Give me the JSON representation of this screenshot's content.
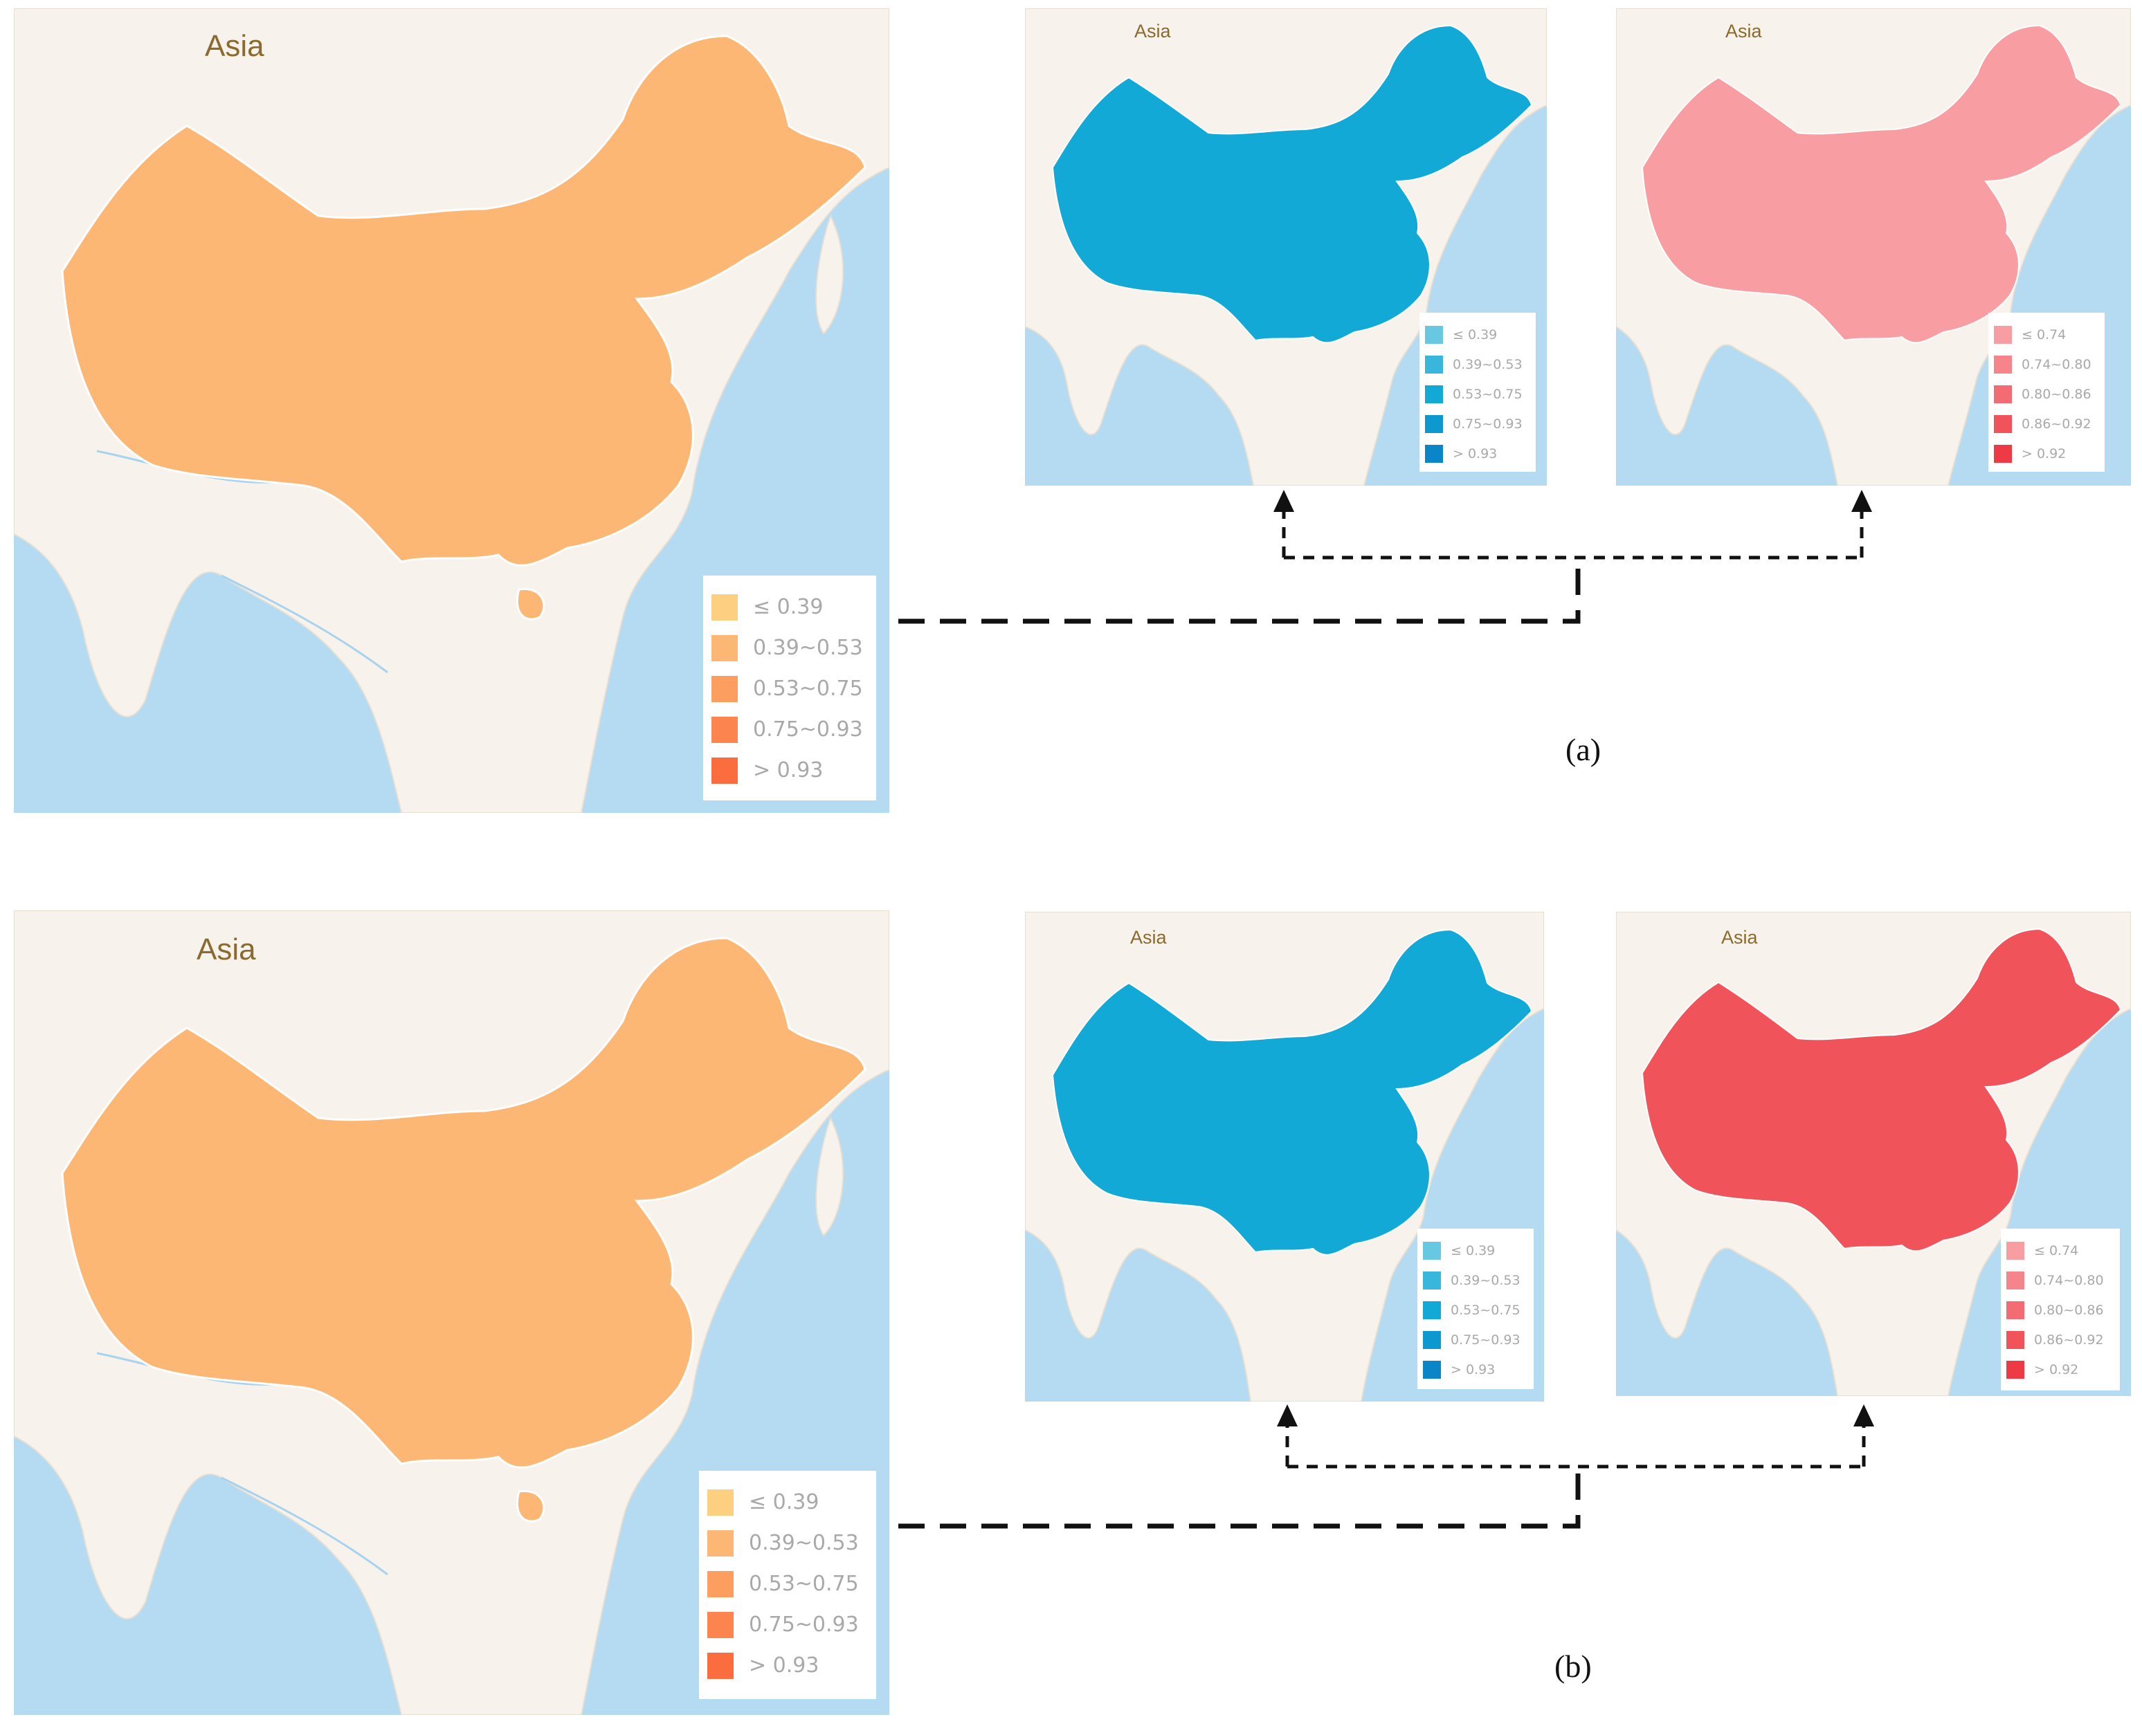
{
  "panels": [
    {
      "label": "(a)",
      "maps": [
        {
          "region_label": "Asia",
          "palette": "orange",
          "fill_shade": 1,
          "legend": {
            "entries": [
              "≤ 0.39",
              "0.39~0.53",
              "0.53~0.75",
              "0.75~0.93",
              "> 0.93"
            ],
            "colors": [
              "#fdd081",
              "#fdb774",
              "#fd9e61",
              "#fc854f",
              "#fb6c3f"
            ]
          }
        },
        {
          "region_label": "Asia",
          "palette": "blue",
          "fill_shade": 2,
          "legend": {
            "entries": [
              "≤ 0.39",
              "0.39~0.53",
              "0.53~0.75",
              "0.75~0.93",
              "> 0.93"
            ],
            "colors": [
              "#68c8e2",
              "#38b6dc",
              "#12a9d6",
              "#0d99d0",
              "#0a86c8"
            ]
          }
        },
        {
          "region_label": "Asia",
          "palette": "red",
          "fill_shade": 0,
          "legend": {
            "entries": [
              "≤ 0.74",
              "0.74~0.80",
              "0.80~0.86",
              "0.86~0.92",
              "> 0.92"
            ],
            "colors": [
              "#f89ea3",
              "#f6858b",
              "#f46c73",
              "#f1535b",
              "#ee3a44"
            ]
          }
        }
      ]
    },
    {
      "label": "(b)",
      "maps": [
        {
          "region_label": "Asia",
          "palette": "orange",
          "fill_shade": 1,
          "legend": {
            "entries": [
              "≤ 0.39",
              "0.39~0.53",
              "0.53~0.75",
              "0.75~0.93",
              "> 0.93"
            ],
            "colors": [
              "#fdd081",
              "#fdb774",
              "#fd9e61",
              "#fc854f",
              "#fb6c3f"
            ]
          }
        },
        {
          "region_label": "Asia",
          "palette": "blue",
          "fill_shade": 2,
          "legend": {
            "entries": [
              "≤ 0.39",
              "0.39~0.53",
              "0.53~0.75",
              "0.75~0.93",
              "> 0.93"
            ],
            "colors": [
              "#68c8e2",
              "#38b6dc",
              "#12a9d6",
              "#0d99d0",
              "#0a86c8"
            ]
          }
        },
        {
          "region_label": "Asia",
          "palette": "red",
          "fill_shade": 3,
          "legend": {
            "entries": [
              "≤ 0.74",
              "0.74~0.80",
              "0.80~0.86",
              "0.86~0.92",
              "> 0.92"
            ],
            "colors": [
              "#f89ea3",
              "#f6858b",
              "#f46c73",
              "#f1535b",
              "#ee3a44"
            ]
          }
        }
      ]
    }
  ],
  "colors": {
    "sea": "#b5dbf3",
    "land": "#f7f3ec",
    "river": "#a8d3ef",
    "connector": "#111111"
  }
}
